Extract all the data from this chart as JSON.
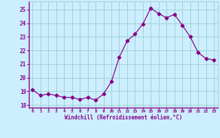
{
  "x": [
    0,
    1,
    2,
    3,
    4,
    5,
    6,
    7,
    8,
    9,
    10,
    11,
    12,
    13,
    14,
    15,
    16,
    17,
    18,
    19,
    20,
    21,
    22,
    23
  ],
  "y": [
    19.1,
    18.7,
    18.8,
    18.7,
    18.55,
    18.55,
    18.4,
    18.55,
    18.35,
    18.8,
    19.7,
    21.5,
    22.7,
    23.2,
    23.95,
    25.1,
    24.7,
    24.4,
    24.65,
    23.85,
    23.0,
    21.85,
    21.4,
    21.3
  ],
  "line_color": "#880088",
  "marker": "D",
  "marker_size": 2.5,
  "bg_color": "#cceeff",
  "grid_color": "#99cccc",
  "xlabel": "Windchill (Refroidissement éolien,°C)",
  "xlabel_color": "#880088",
  "ylabel_ticks": [
    18,
    19,
    20,
    21,
    22,
    23,
    24,
    25
  ],
  "xlim": [
    -0.5,
    23.5
  ],
  "ylim": [
    17.8,
    25.6
  ],
  "tick_color": "#880088",
  "spine_color": "#880088"
}
